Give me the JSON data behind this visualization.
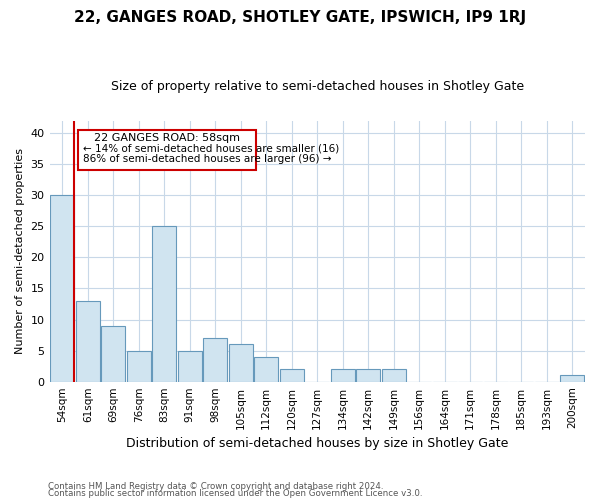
{
  "title": "22, GANGES ROAD, SHOTLEY GATE, IPSWICH, IP9 1RJ",
  "subtitle": "Size of property relative to semi-detached houses in Shotley Gate",
  "xlabel": "Distribution of semi-detached houses by size in Shotley Gate",
  "ylabel": "Number of semi-detached properties",
  "categories": [
    "54sqm",
    "61sqm",
    "69sqm",
    "76sqm",
    "83sqm",
    "91sqm",
    "98sqm",
    "105sqm",
    "112sqm",
    "120sqm",
    "127sqm",
    "134sqm",
    "142sqm",
    "149sqm",
    "156sqm",
    "164sqm",
    "171sqm",
    "178sqm",
    "185sqm",
    "193sqm",
    "200sqm"
  ],
  "values": [
    30,
    13,
    9,
    5,
    25,
    5,
    7,
    6,
    4,
    2,
    0,
    2,
    2,
    2,
    0,
    0,
    0,
    0,
    0,
    0,
    1
  ],
  "bar_color": "#d0e4f0",
  "bar_edge_color": "#6699bb",
  "highlight_line_color": "#cc0000",
  "annotation_line1": "22 GANGES ROAD: 58sqm",
  "annotation_line2": "← 14% of semi-detached houses are smaller (16)",
  "annotation_line3": "86% of semi-detached houses are larger (96) →",
  "annotation_box_edge": "#cc0000",
  "footnote1": "Contains HM Land Registry data © Crown copyright and database right 2024.",
  "footnote2": "Contains public sector information licensed under the Open Government Licence v3.0.",
  "ylim": [
    0,
    42
  ],
  "yticks": [
    0,
    5,
    10,
    15,
    20,
    25,
    30,
    35,
    40
  ],
  "background_color": "#ffffff",
  "grid_color": "#c8d8e8",
  "title_fontsize": 11,
  "subtitle_fontsize": 9,
  "ylabel_fontsize": 8,
  "xlabel_fontsize": 9
}
